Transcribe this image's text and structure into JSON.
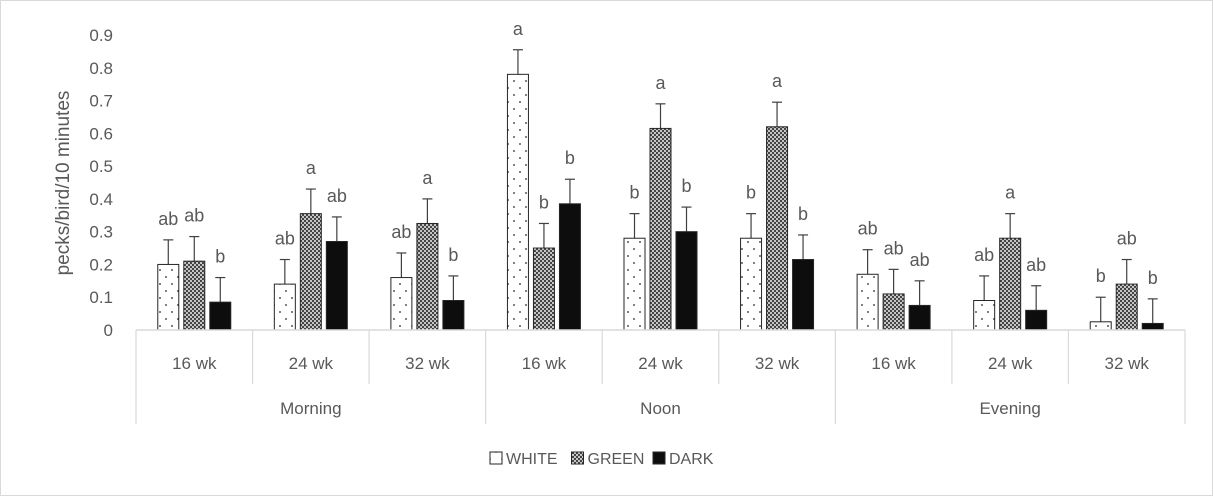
{
  "chart_data": {
    "type": "bar",
    "ylabel": "pecks/bird/10 minutes",
    "ylim": [
      0,
      0.9
    ],
    "yticks": [
      "0",
      "0.1",
      "0.2",
      "0.3",
      "0.4",
      "0.5",
      "0.6",
      "0.7",
      "0.8",
      "0.9"
    ],
    "groups": [
      {
        "name": "Morning",
        "categories": [
          "16 wk",
          "24 wk",
          "32 wk"
        ]
      },
      {
        "name": "Noon",
        "categories": [
          "16 wk",
          "24 wk",
          "32 wk"
        ]
      },
      {
        "name": "Evening",
        "categories": [
          "16 wk",
          "24 wk",
          "32 wk"
        ]
      }
    ],
    "series": [
      {
        "name": "WHITE",
        "pattern": "dots",
        "values": [
          0.2,
          0.14,
          0.16,
          0.78,
          0.28,
          0.28,
          0.17,
          0.09,
          0.025
        ],
        "errors": [
          0.075,
          0.075,
          0.075,
          0.075,
          0.075,
          0.075,
          0.075,
          0.075,
          0.075
        ],
        "letters": [
          "ab",
          "ab",
          "ab",
          "a",
          "b",
          "b",
          "ab",
          "ab",
          "b"
        ]
      },
      {
        "name": "GREEN",
        "pattern": "crosshatch",
        "values": [
          0.21,
          0.355,
          0.325,
          0.25,
          0.615,
          0.62,
          0.11,
          0.28,
          0.14
        ],
        "errors": [
          0.075,
          0.075,
          0.075,
          0.075,
          0.075,
          0.075,
          0.075,
          0.075,
          0.075
        ],
        "letters": [
          "ab",
          "a",
          "a",
          "b",
          "a",
          "a",
          "ab",
          "a",
          "ab"
        ]
      },
      {
        "name": "DARK",
        "pattern": "solid",
        "values": [
          0.085,
          0.27,
          0.09,
          0.385,
          0.3,
          0.215,
          0.075,
          0.06,
          0.02
        ],
        "errors": [
          0.075,
          0.075,
          0.075,
          0.075,
          0.075,
          0.075,
          0.075,
          0.075,
          0.075
        ],
        "letters": [
          "b",
          "ab",
          "b",
          "b",
          "b",
          "b",
          "ab",
          "ab",
          "b"
        ]
      }
    ],
    "legend_position": "bottom",
    "grid": false,
    "colors": {
      "axis": "#d9d9d9",
      "text": "#595959",
      "bar_edge": "#262626",
      "dark_fill": "#0d0d0d",
      "white_fill": "#ffffff"
    }
  }
}
